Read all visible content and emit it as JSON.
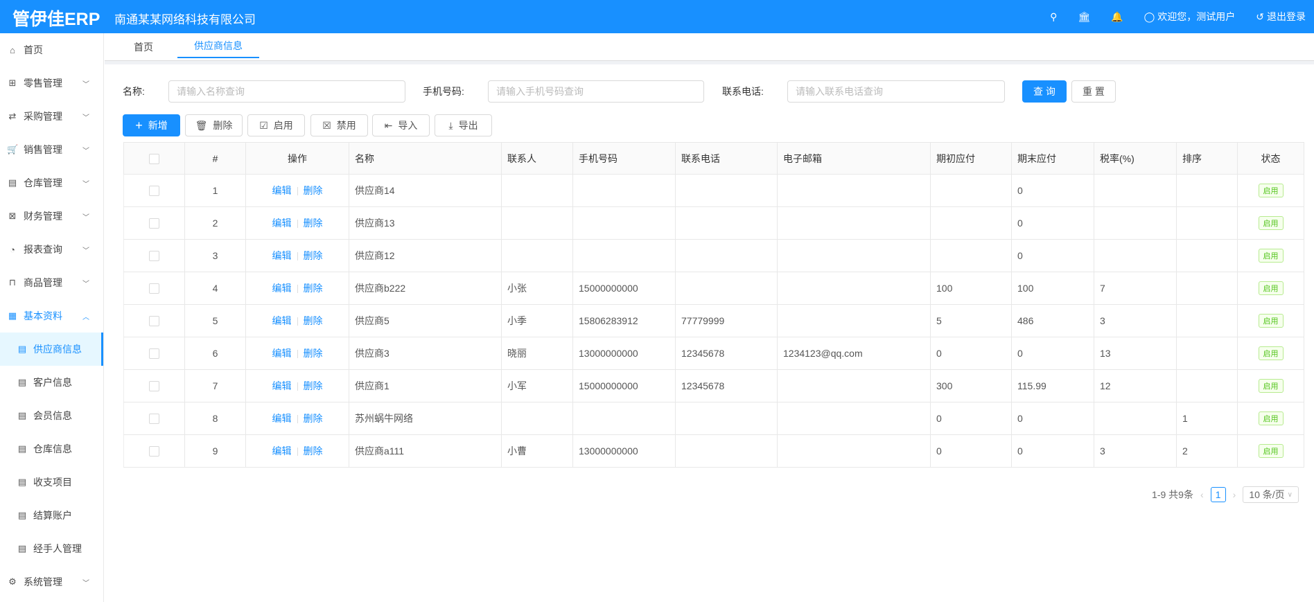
{
  "header": {
    "logo": "管伊佳ERP",
    "company": "南通某某网络科技有限公司",
    "welcome": "欢迎您，测试用户",
    "logout": "退出登录",
    "brand_color": "#1890ff"
  },
  "sidebar": {
    "items": [
      {
        "label": "首页",
        "icon": "home-icon"
      },
      {
        "label": "零售管理",
        "icon": "gift-icon"
      },
      {
        "label": "采购管理",
        "icon": "swap-icon"
      },
      {
        "label": "销售管理",
        "icon": "cart-icon"
      },
      {
        "label": "仓库管理",
        "icon": "warehouse-icon"
      },
      {
        "label": "财务管理",
        "icon": "finance-icon"
      },
      {
        "label": "报表查询",
        "icon": "pie-chart-icon"
      },
      {
        "label": "商品管理",
        "icon": "shopping-bag-icon"
      },
      {
        "label": "基本资料",
        "icon": "appstore-icon"
      },
      {
        "label": "供应商信息",
        "icon": "profile-icon"
      },
      {
        "label": "客户信息",
        "icon": "profile-icon"
      },
      {
        "label": "会员信息",
        "icon": "profile-icon"
      },
      {
        "label": "仓库信息",
        "icon": "profile-icon"
      },
      {
        "label": "收支项目",
        "icon": "profile-icon"
      },
      {
        "label": "结算账户",
        "icon": "profile-icon"
      },
      {
        "label": "经手人管理",
        "icon": "profile-icon"
      },
      {
        "label": "系统管理",
        "icon": "setting-icon"
      }
    ]
  },
  "tabs": [
    {
      "label": "首页"
    },
    {
      "label": "供应商信息"
    }
  ],
  "search": {
    "name_label": "名称:",
    "name_placeholder": "请输入名称查询",
    "phone_label": "手机号码:",
    "phone_placeholder": "请输入手机号码查询",
    "tel_label": "联系电话:",
    "tel_placeholder": "请输入联系电话查询",
    "query": "查 询",
    "reset": "重 置"
  },
  "toolbar": {
    "add": "新增",
    "delete": "删除",
    "enable": "启用",
    "disable": "禁用",
    "import": "导入",
    "export": "导出"
  },
  "table": {
    "columns": [
      "#",
      "操作",
      "名称",
      "联系人",
      "手机号码",
      "联系电话",
      "电子邮箱",
      "期初应付",
      "期末应付",
      "税率(%)",
      "排序",
      "状态"
    ],
    "edit": "编辑",
    "del": "删除",
    "rows": [
      [
        "1",
        "供应商14",
        "",
        "",
        "",
        "",
        "",
        "0",
        "",
        "",
        "启用"
      ],
      [
        "2",
        "供应商13",
        "",
        "",
        "",
        "",
        "",
        "0",
        "",
        "",
        "启用"
      ],
      [
        "3",
        "供应商12",
        "",
        "",
        "",
        "",
        "",
        "0",
        "",
        "",
        "启用"
      ],
      [
        "4",
        "供应商b222",
        "小张",
        "15000000000",
        "",
        "",
        "100",
        "100",
        "7",
        "",
        "启用"
      ],
      [
        "5",
        "供应商5",
        "小季",
        "15806283912",
        "77779999",
        "",
        "5",
        "486",
        "3",
        "",
        "启用"
      ],
      [
        "6",
        "供应商3",
        "晓丽",
        "13000000000",
        "12345678",
        "1234123@qq.com",
        "0",
        "0",
        "13",
        "",
        "启用"
      ],
      [
        "7",
        "供应商1",
        "小军",
        "15000000000",
        "12345678",
        "",
        "300",
        "115.99",
        "12",
        "",
        "启用"
      ],
      [
        "8",
        "苏州蜗牛网络",
        "",
        "",
        "",
        "",
        "0",
        "0",
        "",
        "1",
        "启用"
      ],
      [
        "9",
        "供应商a111",
        "小曹",
        "13000000000",
        "",
        "",
        "0",
        "0",
        "3",
        "2",
        "启用"
      ]
    ]
  },
  "pagination": {
    "total": "1-9 共9条",
    "current": "1",
    "page_size": "10 条/页"
  }
}
